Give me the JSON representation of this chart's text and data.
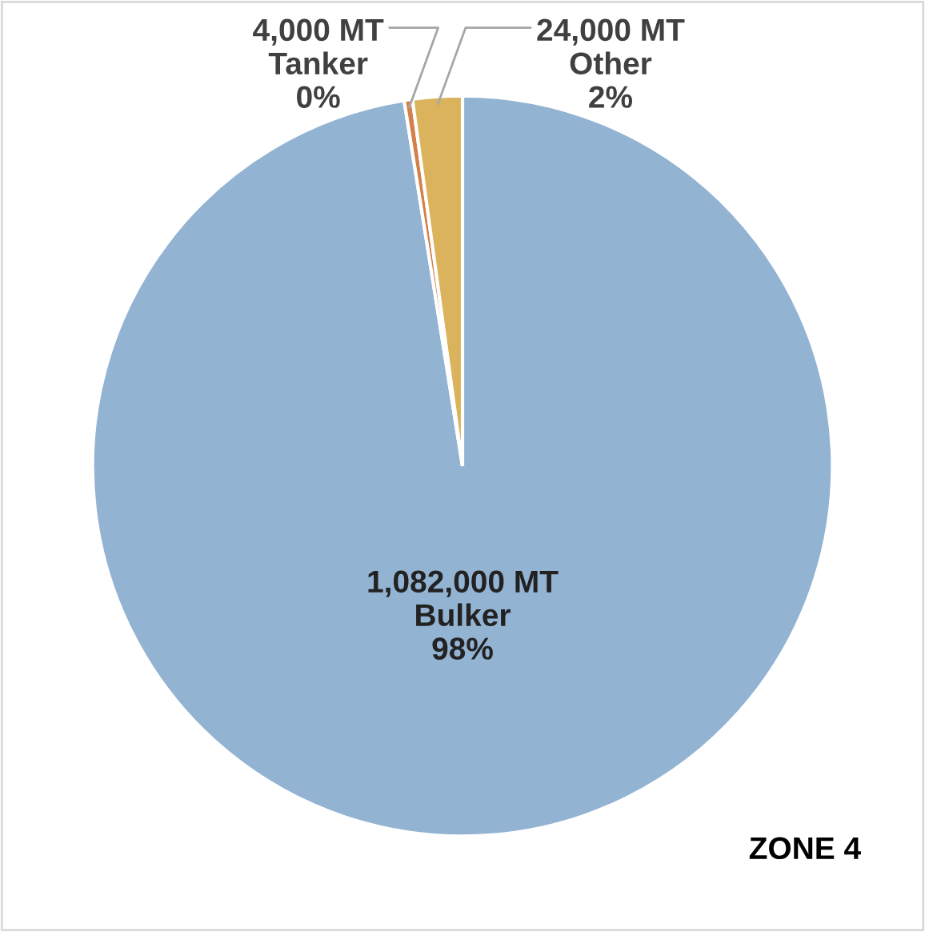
{
  "chart_data": {
    "type": "pie",
    "title": "ZONE 4",
    "categories": [
      "Bulker",
      "Tanker",
      "Other"
    ],
    "values": [
      1082000,
      4000,
      24000
    ],
    "colors": [
      "#93b3d3",
      "#d4804a",
      "#dab35c"
    ],
    "value_labels": [
      "1,082,000 MT",
      "4,000 MT",
      "24,000 MT"
    ],
    "annotations": [
      {
        "text": "98%",
        "x": "Bulker"
      },
      {
        "text": "0%",
        "x": "Tanker"
      },
      {
        "text": "2%",
        "x": "Other"
      }
    ]
  }
}
